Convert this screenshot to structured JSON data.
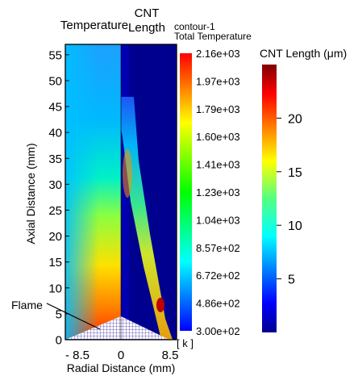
{
  "chart_data": {
    "type": "heatmap",
    "panels": [
      {
        "title": "Temperature",
        "x_range": [
          -8.5,
          0
        ]
      },
      {
        "title_lines": [
          "CNT",
          "Length"
        ],
        "x_range": [
          0,
          8.5
        ]
      }
    ],
    "xlabel": "Radial Distance (mm)",
    "ylabel": "Axial Distance (mm)",
    "x_ticks": [
      "- 8.5",
      "0",
      "8.5"
    ],
    "y_ticks": [
      0,
      5,
      10,
      15,
      20,
      25,
      30,
      35,
      40,
      45,
      50,
      55
    ],
    "ylim": [
      0,
      57
    ],
    "annotation": "Flame",
    "temperature_colorbar": {
      "title_lines": [
        "contour-1",
        "Total Temperature"
      ],
      "unit": "[ k ]",
      "range": [
        300,
        2160
      ],
      "tick_labels": [
        "2.16e+03",
        "1.97e+03",
        "1.79e+03",
        "1.60e+03",
        "1.41e+03",
        "1.23e+03",
        "1.04e+03",
        "8.57e+02",
        "6.72e+02",
        "4.86e+02",
        "3.00e+02"
      ]
    },
    "cnt_colorbar": {
      "title": "CNT Length (μm)",
      "range": [
        0,
        25
      ],
      "tick_labels": [
        "20",
        "15",
        "10",
        "5"
      ],
      "tick_values": [
        20,
        15,
        10,
        5
      ]
    }
  }
}
